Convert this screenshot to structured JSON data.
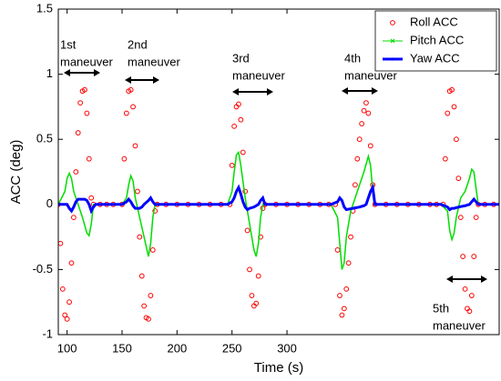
{
  "chart_data": {
    "type": "line",
    "xlabel": "Time (s)",
    "ylabel": "ACC (deg)",
    "xlim": [
      92,
      493
    ],
    "xticks": [
      100,
      150,
      200,
      250,
      300
    ],
    "ylim": [
      -1,
      1.5
    ],
    "yticks": [
      -1,
      -0.5,
      0,
      0.5,
      1,
      1.5
    ],
    "grid": false,
    "legend": "upper right",
    "annotations": [
      {
        "lines": [
          "1st",
          "maneuver"
        ]
      },
      {
        "lines": [
          "2nd",
          "maneuver"
        ]
      },
      {
        "lines": [
          "3rd",
          "maneuver"
        ]
      },
      {
        "lines": [
          "4th",
          "maneuver"
        ]
      },
      {
        "lines": [
          "5th",
          "maneuver"
        ]
      }
    ],
    "series": [
      {
        "name": "Roll ACC",
        "color": "#ff0000",
        "marker": "o",
        "x": [
          92,
          94,
          96,
          98,
          100,
          102,
          104,
          106,
          108,
          110,
          112,
          114,
          116,
          118,
          120,
          122,
          124,
          130,
          136,
          142,
          150,
          152,
          154,
          156,
          158,
          160,
          162,
          164,
          166,
          168,
          170,
          172,
          174,
          176,
          178,
          180,
          182,
          190,
          200,
          210,
          220,
          230,
          240,
          248,
          250,
          252,
          254,
          256,
          258,
          260,
          262,
          264,
          266,
          268,
          270,
          272,
          274,
          276,
          278,
          280,
          290,
          300,
          310,
          320,
          330,
          338,
          344,
          346,
          348,
          350,
          352,
          354,
          356,
          358,
          360,
          362,
          364,
          366,
          368,
          370,
          372,
          374,
          376,
          378,
          380,
          390,
          400,
          410,
          420,
          430,
          436,
          442,
          444,
          446,
          448,
          450,
          452,
          454,
          456,
          458,
          460,
          462,
          464,
          466,
          468,
          470,
          472,
          474,
          480,
          488
        ],
        "values": [
          0,
          -0.3,
          -0.65,
          -0.85,
          -0.88,
          -0.75,
          -0.45,
          -0.1,
          0.25,
          0.55,
          0.78,
          0.87,
          0.88,
          0.7,
          0.35,
          0.05,
          0,
          0,
          0,
          0,
          0,
          0.35,
          0.7,
          0.87,
          0.88,
          0.75,
          0.45,
          0.1,
          -0.25,
          -0.55,
          -0.78,
          -0.87,
          -0.88,
          -0.7,
          -0.35,
          -0.05,
          0,
          0,
          0,
          0,
          0,
          0,
          0,
          0,
          0.3,
          0.6,
          0.75,
          0.77,
          0.65,
          0.4,
          0.1,
          -0.2,
          -0.5,
          -0.7,
          -0.78,
          -0.76,
          -0.55,
          -0.25,
          -0.03,
          0,
          0,
          0,
          0,
          0,
          0,
          0,
          0,
          -0.35,
          -0.7,
          -0.85,
          -0.8,
          -0.65,
          -0.45,
          -0.25,
          -0.05,
          0.15,
          0.35,
          0.5,
          0.62,
          0.72,
          0.78,
          0.7,
          0.45,
          0.15,
          0,
          0,
          0,
          0,
          0,
          0,
          0,
          0,
          0.35,
          0.7,
          0.87,
          0.88,
          0.75,
          0.5,
          0.2,
          -0.1,
          -0.4,
          -0.65,
          -0.8,
          -0.82,
          -0.7,
          -0.4,
          -0.1,
          0,
          0,
          0
        ]
      },
      {
        "name": "Pitch ACC",
        "color": "#00dd00",
        "marker": "x",
        "x": [
          92,
          98,
          100,
          102,
          104,
          106,
          110,
          114,
          118,
          120,
          122,
          124,
          150,
          154,
          156,
          158,
          160,
          162,
          166,
          170,
          174,
          176,
          178,
          180,
          246,
          250,
          252,
          254,
          256,
          258,
          262,
          266,
          270,
          272,
          274,
          276,
          278,
          280,
          340,
          346,
          348,
          350,
          352,
          354,
          358,
          364,
          370,
          374,
          376,
          378,
          380,
          440,
          446,
          448,
          450,
          452,
          454,
          458,
          462,
          466,
          468,
          470,
          472,
          474,
          493
        ],
        "values": [
          0,
          0.1,
          0.2,
          0.24,
          0.2,
          0.1,
          0,
          -0.1,
          -0.22,
          -0.24,
          -0.15,
          0,
          0,
          0.05,
          0.15,
          0.22,
          0.18,
          0.05,
          -0.1,
          -0.25,
          -0.4,
          -0.3,
          -0.1,
          0,
          0,
          0.1,
          0.25,
          0.38,
          0.4,
          0.3,
          0.05,
          -0.15,
          -0.35,
          -0.4,
          -0.3,
          -0.1,
          0,
          0,
          0,
          -0.1,
          -0.3,
          -0.5,
          -0.45,
          -0.25,
          -0.05,
          0.1,
          0.25,
          0.37,
          0.3,
          0.1,
          0,
          0,
          -0.05,
          -0.2,
          -0.27,
          -0.22,
          -0.1,
          0.05,
          0.1,
          0.2,
          0.27,
          0.25,
          0.12,
          0,
          0
        ]
      },
      {
        "name": "Yaw ACC",
        "color": "#0000ff",
        "marker": ".",
        "x": [
          92,
          100,
          102,
          104,
          106,
          108,
          110,
          112,
          114,
          116,
          118,
          120,
          122,
          124,
          126,
          150,
          154,
          156,
          158,
          160,
          162,
          164,
          166,
          168,
          170,
          174,
          176,
          178,
          180,
          246,
          250,
          252,
          254,
          256,
          258,
          260,
          262,
          264,
          266,
          270,
          274,
          276,
          278,
          280,
          340,
          346,
          348,
          350,
          352,
          354,
          360,
          366,
          370,
          372,
          374,
          376,
          378,
          380,
          440,
          446,
          448,
          450,
          452,
          456,
          462,
          466,
          468,
          470,
          472,
          474,
          493
        ],
        "values": [
          0,
          0,
          -0.03,
          -0.05,
          -0.02,
          0.02,
          0.04,
          0.04,
          0.04,
          0.04,
          0.03,
          0,
          -0.05,
          -0.02,
          0,
          0,
          0.02,
          0.04,
          0.02,
          -0.01,
          -0.03,
          -0.03,
          -0.03,
          -0.02,
          0,
          0.03,
          0.05,
          0.02,
          0,
          0,
          0.02,
          0.05,
          0.1,
          0.13,
          0.08,
          0.02,
          -0.02,
          -0.04,
          -0.03,
          -0.02,
          0,
          0.03,
          0.05,
          0,
          0,
          0.02,
          0.05,
          0.03,
          -0.02,
          -0.04,
          -0.03,
          -0.02,
          -0.01,
          0,
          0.05,
          0.1,
          0.13,
          0,
          0,
          -0.02,
          -0.04,
          -0.03,
          -0.03,
          -0.02,
          -0.01,
          0,
          0.02,
          0.04,
          0.02,
          0,
          0
        ]
      }
    ]
  }
}
